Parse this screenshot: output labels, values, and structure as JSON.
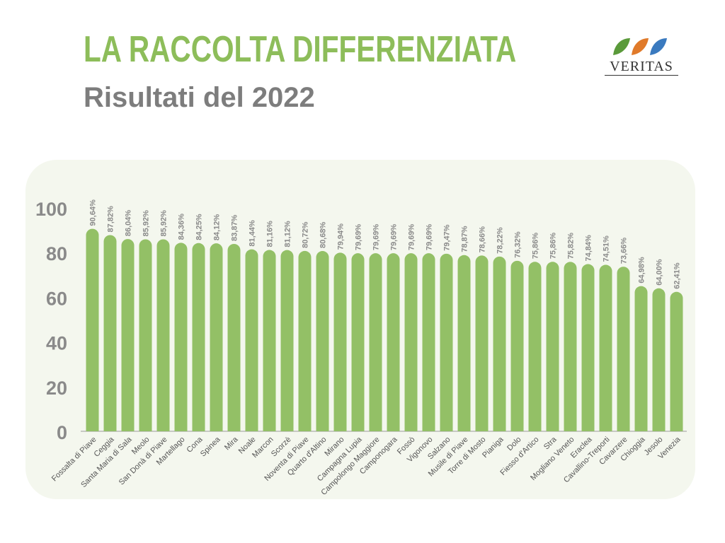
{
  "header": {
    "title": "LA RACCOLTA DIFFERENZIATA",
    "subtitle": "Risultati del 2022"
  },
  "logo": {
    "text": "VERITAS",
    "colors": [
      "#5a9a3a",
      "#e07a2a",
      "#3a7abf"
    ]
  },
  "colors": {
    "bar": "#93c066",
    "title": "#8dbd5a",
    "subtitle": "#7d7d7d",
    "panel": "#f4f7ee"
  },
  "chart_data": {
    "type": "bar",
    "title": "",
    "xlabel": "",
    "ylabel": "",
    "ylim": [
      0,
      100
    ],
    "yticks": [
      0,
      20,
      40,
      60,
      80,
      100
    ],
    "grid": false,
    "categories": [
      "Fossalta di Piave",
      "Ceggia",
      "Santa Maria di Sala",
      "Meolo",
      "San Donà di Piave",
      "Martellago",
      "Cona",
      "Spinea",
      "Mira",
      "Noale",
      "Marcon",
      "Scorzè",
      "Noventa di Piave",
      "Quarto d'Altino",
      "Mirano",
      "Campagna Lupia",
      "Campolongo Maggiore",
      "Camponogara",
      "Fossò",
      "Vigonovo",
      "Salzano",
      "Musile di Piave",
      "Torre di Mosto",
      "Pianiga",
      "Dolo",
      "Fiesso d'Artico",
      "Stra",
      "Mogliano Veneto",
      "Eraclea",
      "Cavallino-Treporti",
      "Cavarzere",
      "Chioggia",
      "Jesolo",
      "Venezia"
    ],
    "values": [
      90.64,
      87.82,
      86.04,
      85.92,
      85.92,
      84.36,
      84.25,
      84.12,
      83.87,
      81.44,
      81.16,
      81.12,
      80.72,
      80.68,
      79.94,
      79.69,
      79.69,
      79.69,
      79.69,
      79.69,
      79.47,
      78.87,
      78.66,
      78.22,
      76.32,
      75.86,
      75.86,
      75.82,
      74.84,
      74.51,
      73.66,
      64.98,
      64.0,
      62.41
    ],
    "value_labels": [
      "90,64%",
      "87,82%",
      "86,04%",
      "85,92%",
      "85,92%",
      "84,36%",
      "84,25%",
      "84,12%",
      "83,87%",
      "81,44%",
      "81,16%",
      "81,12%",
      "80,72%",
      "80,68%",
      "79,94%",
      "79,69%",
      "79,69%",
      "79,69%",
      "79,69%",
      "79,69%",
      "79,47%",
      "78,87%",
      "78,66%",
      "78,22%",
      "76,32%",
      "75,86%",
      "75,86%",
      "75,82%",
      "74,84%",
      "74,51%",
      "73,66%",
      "64,98%",
      "64,00%",
      "62,41%"
    ]
  }
}
